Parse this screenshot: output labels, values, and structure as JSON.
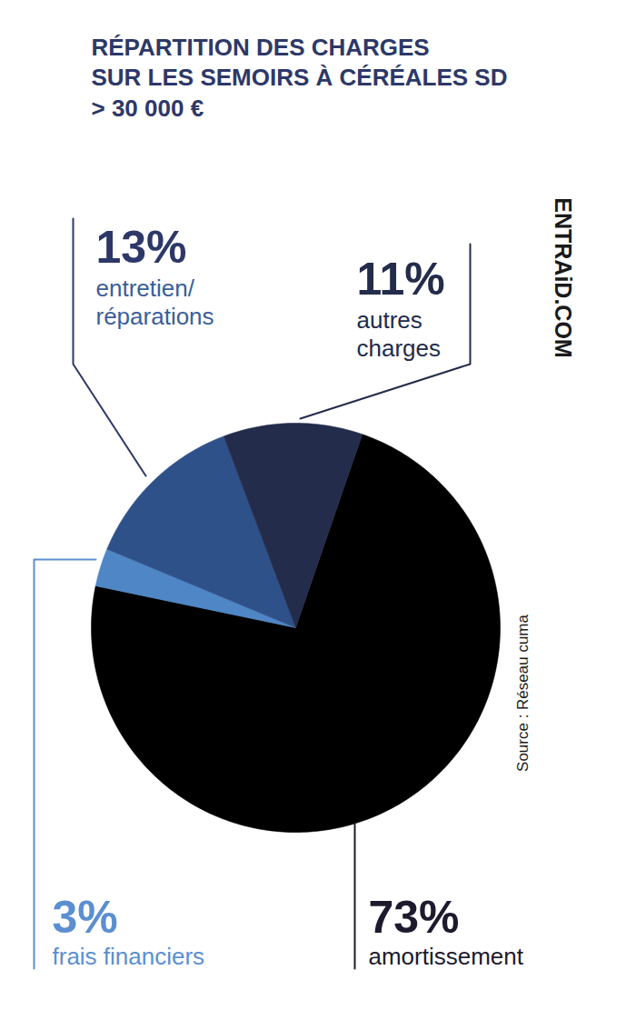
{
  "chart_data": {
    "type": "pie",
    "title": "RÉPARTITION DES CHARGES\nSUR LES SEMOIRS À CÉRÉALES SD\n> 30 000 €",
    "categories": [
      "amortissement",
      "frais financiers",
      "entretien/\nréparations",
      "autres\ncharges"
    ],
    "values": [
      73,
      3,
      13,
      11
    ],
    "value_labels": [
      "73%",
      "3%",
      "13%",
      "11%"
    ],
    "colors": [
      "#000000",
      "#4f86c6",
      "#2f5189",
      "#232c4a"
    ],
    "data_labels": true,
    "annotations": [
      "ENTRAiD.COM",
      "Source : Réseau cuma"
    ]
  }
}
